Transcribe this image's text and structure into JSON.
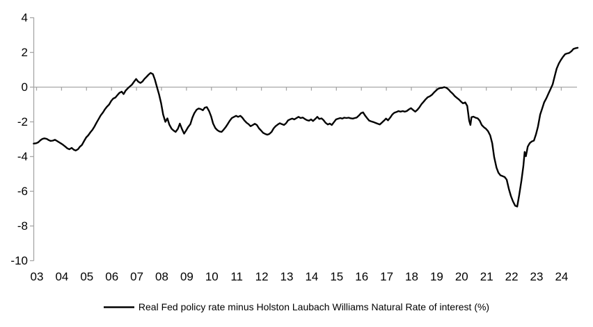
{
  "legend": {
    "label": "Real Fed policy rate minus Holston Laubach Williams Natural Rate of interest (%)"
  },
  "chart_data": {
    "type": "line",
    "title": "",
    "legend_position": "bottom",
    "grid": {
      "zero_line_only": true
    },
    "colors": {
      "axis": "#A6A6A6",
      "series": "#000000",
      "text": "#000000",
      "background": "#FFFFFF"
    },
    "y_axis": {
      "tick_values": [
        4,
        2,
        0,
        -2,
        -4,
        -6,
        -8,
        -10
      ],
      "range": [
        -10,
        4
      ]
    },
    "x_axis": {
      "tick_years": [
        2003,
        2004,
        2005,
        2006,
        2007,
        2008,
        2009,
        2010,
        2011,
        2012,
        2013,
        2014,
        2015,
        2016,
        2017,
        2018,
        2019,
        2020,
        2021,
        2022,
        2023,
        2024
      ],
      "tick_labels": [
        "03",
        "04",
        "05",
        "06",
        "07",
        "08",
        "09",
        "10",
        "11",
        "12",
        "13",
        "14",
        "15",
        "16",
        "17",
        "18",
        "19",
        "20",
        "21",
        "22",
        "23",
        "24"
      ],
      "range": [
        2002.9,
        2024.7
      ]
    },
    "series": [
      {
        "name": "Real Fed policy rate minus Holston Laubach Williams Natural Rate of interest (%)",
        "color": "#000000",
        "points": [
          [
            2002.9,
            -3.27
          ],
          [
            2003.0,
            -3.25
          ],
          [
            2003.08,
            -3.2
          ],
          [
            2003.17,
            -3.08
          ],
          [
            2003.25,
            -3.0
          ],
          [
            2003.33,
            -2.97
          ],
          [
            2003.42,
            -3.0
          ],
          [
            2003.5,
            -3.07
          ],
          [
            2003.58,
            -3.12
          ],
          [
            2003.67,
            -3.1
          ],
          [
            2003.75,
            -3.05
          ],
          [
            2003.83,
            -3.12
          ],
          [
            2003.92,
            -3.2
          ],
          [
            2004.0,
            -3.27
          ],
          [
            2004.08,
            -3.35
          ],
          [
            2004.17,
            -3.45
          ],
          [
            2004.25,
            -3.55
          ],
          [
            2004.33,
            -3.6
          ],
          [
            2004.42,
            -3.52
          ],
          [
            2004.5,
            -3.62
          ],
          [
            2004.58,
            -3.67
          ],
          [
            2004.67,
            -3.6
          ],
          [
            2004.75,
            -3.45
          ],
          [
            2004.83,
            -3.35
          ],
          [
            2004.92,
            -3.12
          ],
          [
            2005.0,
            -2.92
          ],
          [
            2005.08,
            -2.8
          ],
          [
            2005.17,
            -2.62
          ],
          [
            2005.25,
            -2.48
          ],
          [
            2005.33,
            -2.3
          ],
          [
            2005.42,
            -2.05
          ],
          [
            2005.5,
            -1.85
          ],
          [
            2005.58,
            -1.65
          ],
          [
            2005.67,
            -1.48
          ],
          [
            2005.75,
            -1.3
          ],
          [
            2005.83,
            -1.15
          ],
          [
            2005.92,
            -1.02
          ],
          [
            2006.0,
            -0.82
          ],
          [
            2006.08,
            -0.68
          ],
          [
            2006.17,
            -0.62
          ],
          [
            2006.25,
            -0.48
          ],
          [
            2006.33,
            -0.35
          ],
          [
            2006.42,
            -0.28
          ],
          [
            2006.5,
            -0.42
          ],
          [
            2006.58,
            -0.22
          ],
          [
            2006.67,
            -0.08
          ],
          [
            2006.75,
            0.02
          ],
          [
            2006.83,
            0.12
          ],
          [
            2006.92,
            0.3
          ],
          [
            2007.0,
            0.45
          ],
          [
            2007.08,
            0.3
          ],
          [
            2007.17,
            0.22
          ],
          [
            2007.25,
            0.3
          ],
          [
            2007.33,
            0.45
          ],
          [
            2007.42,
            0.58
          ],
          [
            2007.5,
            0.7
          ],
          [
            2007.58,
            0.8
          ],
          [
            2007.67,
            0.73
          ],
          [
            2007.75,
            0.42
          ],
          [
            2007.83,
            0.0
          ],
          [
            2007.92,
            -0.45
          ],
          [
            2008.0,
            -0.95
          ],
          [
            2008.08,
            -1.6
          ],
          [
            2008.17,
            -2.02
          ],
          [
            2008.25,
            -1.82
          ],
          [
            2008.33,
            -2.18
          ],
          [
            2008.42,
            -2.42
          ],
          [
            2008.5,
            -2.52
          ],
          [
            2008.58,
            -2.6
          ],
          [
            2008.67,
            -2.42
          ],
          [
            2008.75,
            -2.12
          ],
          [
            2008.83,
            -2.42
          ],
          [
            2008.92,
            -2.7
          ],
          [
            2009.0,
            -2.52
          ],
          [
            2009.08,
            -2.32
          ],
          [
            2009.17,
            -2.15
          ],
          [
            2009.25,
            -1.78
          ],
          [
            2009.33,
            -1.52
          ],
          [
            2009.42,
            -1.32
          ],
          [
            2009.5,
            -1.25
          ],
          [
            2009.58,
            -1.28
          ],
          [
            2009.67,
            -1.35
          ],
          [
            2009.75,
            -1.2
          ],
          [
            2009.83,
            -1.17
          ],
          [
            2009.92,
            -1.4
          ],
          [
            2010.0,
            -1.7
          ],
          [
            2010.08,
            -2.12
          ],
          [
            2010.17,
            -2.38
          ],
          [
            2010.25,
            -2.5
          ],
          [
            2010.33,
            -2.57
          ],
          [
            2010.42,
            -2.6
          ],
          [
            2010.5,
            -2.47
          ],
          [
            2010.58,
            -2.33
          ],
          [
            2010.67,
            -2.13
          ],
          [
            2010.75,
            -1.95
          ],
          [
            2010.83,
            -1.8
          ],
          [
            2010.92,
            -1.73
          ],
          [
            2011.0,
            -1.67
          ],
          [
            2011.08,
            -1.73
          ],
          [
            2011.17,
            -1.67
          ],
          [
            2011.25,
            -1.78
          ],
          [
            2011.33,
            -1.93
          ],
          [
            2011.42,
            -2.07
          ],
          [
            2011.5,
            -2.15
          ],
          [
            2011.58,
            -2.27
          ],
          [
            2011.67,
            -2.2
          ],
          [
            2011.75,
            -2.13
          ],
          [
            2011.83,
            -2.2
          ],
          [
            2011.92,
            -2.4
          ],
          [
            2012.0,
            -2.52
          ],
          [
            2012.08,
            -2.65
          ],
          [
            2012.17,
            -2.72
          ],
          [
            2012.25,
            -2.76
          ],
          [
            2012.33,
            -2.72
          ],
          [
            2012.42,
            -2.6
          ],
          [
            2012.5,
            -2.4
          ],
          [
            2012.58,
            -2.27
          ],
          [
            2012.67,
            -2.17
          ],
          [
            2012.75,
            -2.1
          ],
          [
            2012.83,
            -2.15
          ],
          [
            2012.92,
            -2.2
          ],
          [
            2013.0,
            -2.1
          ],
          [
            2013.08,
            -1.93
          ],
          [
            2013.17,
            -1.87
          ],
          [
            2013.25,
            -1.83
          ],
          [
            2013.33,
            -1.88
          ],
          [
            2013.42,
            -1.8
          ],
          [
            2013.5,
            -1.73
          ],
          [
            2013.58,
            -1.8
          ],
          [
            2013.67,
            -1.77
          ],
          [
            2013.75,
            -1.85
          ],
          [
            2013.83,
            -1.92
          ],
          [
            2013.92,
            -1.95
          ],
          [
            2014.0,
            -1.88
          ],
          [
            2014.08,
            -1.97
          ],
          [
            2014.17,
            -1.85
          ],
          [
            2014.25,
            -1.73
          ],
          [
            2014.33,
            -1.85
          ],
          [
            2014.42,
            -1.82
          ],
          [
            2014.5,
            -1.92
          ],
          [
            2014.58,
            -2.07
          ],
          [
            2014.67,
            -2.17
          ],
          [
            2014.75,
            -2.12
          ],
          [
            2014.83,
            -2.2
          ],
          [
            2014.92,
            -2.03
          ],
          [
            2015.0,
            -1.88
          ],
          [
            2015.08,
            -1.84
          ],
          [
            2015.17,
            -1.8
          ],
          [
            2015.25,
            -1.83
          ],
          [
            2015.33,
            -1.78
          ],
          [
            2015.42,
            -1.8
          ],
          [
            2015.5,
            -1.78
          ],
          [
            2015.58,
            -1.81
          ],
          [
            2015.67,
            -1.83
          ],
          [
            2015.75,
            -1.8
          ],
          [
            2015.83,
            -1.77
          ],
          [
            2015.92,
            -1.65
          ],
          [
            2016.0,
            -1.52
          ],
          [
            2016.08,
            -1.47
          ],
          [
            2016.17,
            -1.67
          ],
          [
            2016.25,
            -1.82
          ],
          [
            2016.33,
            -1.95
          ],
          [
            2016.42,
            -2.0
          ],
          [
            2016.5,
            -2.03
          ],
          [
            2016.58,
            -2.08
          ],
          [
            2016.67,
            -2.13
          ],
          [
            2016.75,
            -2.17
          ],
          [
            2016.83,
            -2.07
          ],
          [
            2016.92,
            -1.95
          ],
          [
            2017.0,
            -1.83
          ],
          [
            2017.08,
            -1.93
          ],
          [
            2017.17,
            -1.77
          ],
          [
            2017.25,
            -1.6
          ],
          [
            2017.33,
            -1.5
          ],
          [
            2017.42,
            -1.45
          ],
          [
            2017.5,
            -1.4
          ],
          [
            2017.58,
            -1.43
          ],
          [
            2017.67,
            -1.4
          ],
          [
            2017.75,
            -1.43
          ],
          [
            2017.83,
            -1.4
          ],
          [
            2017.92,
            -1.3
          ],
          [
            2018.0,
            -1.23
          ],
          [
            2018.08,
            -1.33
          ],
          [
            2018.17,
            -1.43
          ],
          [
            2018.25,
            -1.33
          ],
          [
            2018.33,
            -1.2
          ],
          [
            2018.42,
            -1.0
          ],
          [
            2018.5,
            -0.87
          ],
          [
            2018.58,
            -0.73
          ],
          [
            2018.67,
            -0.6
          ],
          [
            2018.75,
            -0.55
          ],
          [
            2018.83,
            -0.47
          ],
          [
            2018.92,
            -0.33
          ],
          [
            2019.0,
            -0.22
          ],
          [
            2019.08,
            -0.12
          ],
          [
            2019.17,
            -0.07
          ],
          [
            2019.25,
            -0.06
          ],
          [
            2019.33,
            -0.02
          ],
          [
            2019.42,
            -0.06
          ],
          [
            2019.5,
            -0.15
          ],
          [
            2019.58,
            -0.28
          ],
          [
            2019.67,
            -0.4
          ],
          [
            2019.75,
            -0.53
          ],
          [
            2019.83,
            -0.63
          ],
          [
            2019.92,
            -0.73
          ],
          [
            2020.0,
            -0.85
          ],
          [
            2020.08,
            -0.95
          ],
          [
            2020.17,
            -0.9
          ],
          [
            2020.25,
            -1.1
          ],
          [
            2020.33,
            -1.95
          ],
          [
            2020.38,
            -2.2
          ],
          [
            2020.42,
            -1.75
          ],
          [
            2020.5,
            -1.72
          ],
          [
            2020.58,
            -1.78
          ],
          [
            2020.67,
            -1.82
          ],
          [
            2020.75,
            -1.95
          ],
          [
            2020.83,
            -2.2
          ],
          [
            2020.92,
            -2.33
          ],
          [
            2021.0,
            -2.42
          ],
          [
            2021.08,
            -2.55
          ],
          [
            2021.17,
            -2.8
          ],
          [
            2021.25,
            -3.25
          ],
          [
            2021.33,
            -4.05
          ],
          [
            2021.42,
            -4.65
          ],
          [
            2021.5,
            -4.95
          ],
          [
            2021.58,
            -5.1
          ],
          [
            2021.67,
            -5.15
          ],
          [
            2021.75,
            -5.2
          ],
          [
            2021.83,
            -5.35
          ],
          [
            2021.92,
            -5.9
          ],
          [
            2022.0,
            -6.3
          ],
          [
            2022.08,
            -6.6
          ],
          [
            2022.17,
            -6.85
          ],
          [
            2022.25,
            -6.9
          ],
          [
            2022.33,
            -6.25
          ],
          [
            2022.42,
            -5.4
          ],
          [
            2022.5,
            -4.55
          ],
          [
            2022.55,
            -3.75
          ],
          [
            2022.6,
            -4.0
          ],
          [
            2022.67,
            -3.45
          ],
          [
            2022.75,
            -3.25
          ],
          [
            2022.83,
            -3.15
          ],
          [
            2022.92,
            -3.1
          ],
          [
            2023.0,
            -2.75
          ],
          [
            2023.08,
            -2.3
          ],
          [
            2023.17,
            -1.6
          ],
          [
            2023.25,
            -1.25
          ],
          [
            2023.33,
            -0.9
          ],
          [
            2023.42,
            -0.65
          ],
          [
            2023.5,
            -0.4
          ],
          [
            2023.58,
            -0.15
          ],
          [
            2023.67,
            0.15
          ],
          [
            2023.75,
            0.6
          ],
          [
            2023.83,
            1.05
          ],
          [
            2023.92,
            1.35
          ],
          [
            2024.0,
            1.55
          ],
          [
            2024.08,
            1.72
          ],
          [
            2024.17,
            1.88
          ],
          [
            2024.25,
            1.92
          ],
          [
            2024.33,
            1.95
          ],
          [
            2024.42,
            2.05
          ],
          [
            2024.5,
            2.18
          ],
          [
            2024.58,
            2.22
          ],
          [
            2024.67,
            2.25
          ]
        ]
      }
    ]
  }
}
